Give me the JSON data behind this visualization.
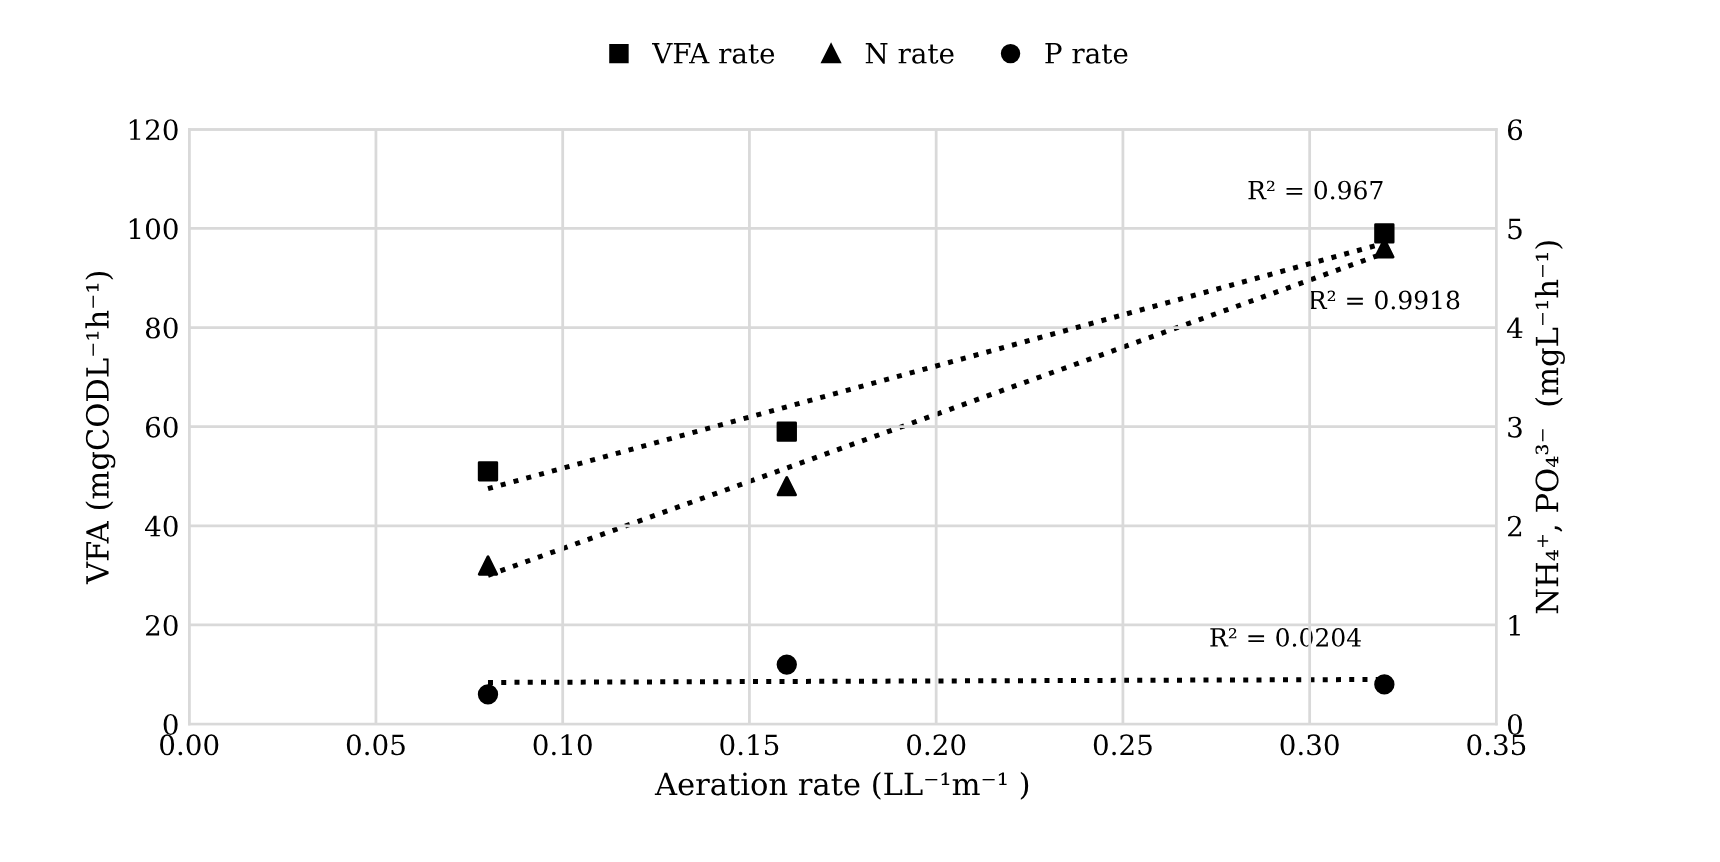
{
  "chart_data": {
    "type": "scatter",
    "xlabel": "Aeration rate (LL⁻¹m⁻¹ )",
    "ylabel": "VFA (mgCODL⁻¹h⁻¹)",
    "y2label": "NH₄⁺, PO₄³⁻  (mgL⁻¹h⁻¹)",
    "xlim": [
      0,
      0.35
    ],
    "xticks": [
      {
        "value": 0,
        "label": "0.00"
      },
      {
        "value": 0.05,
        "label": "0.05"
      },
      {
        "value": 0.1,
        "label": "0.10"
      },
      {
        "value": 0.15,
        "label": "0.15"
      },
      {
        "value": 0.2,
        "label": "0.20"
      },
      {
        "value": 0.25,
        "label": "0.25"
      },
      {
        "value": 0.3,
        "label": "0.30"
      },
      {
        "value": 0.35,
        "label": "0.35"
      }
    ],
    "ylim": [
      0,
      120
    ],
    "yticks": [
      0,
      20,
      40,
      60,
      80,
      100,
      120
    ],
    "y2lim": [
      0,
      6
    ],
    "y2ticks": [
      0,
      1,
      2,
      3,
      4,
      5,
      6
    ],
    "grid": true,
    "legend": "top",
    "series": [
      {
        "name": "VFA rate",
        "marker": "square",
        "color": "#000000",
        "x": [
          0.08,
          0.16,
          0.32
        ],
        "values": [
          51,
          59,
          99
        ]
      },
      {
        "name": "N rate",
        "marker": "triangle",
        "color": "#000000",
        "axis": "y2",
        "x": [
          0.08,
          0.16,
          0.32
        ],
        "values": [
          1.6,
          2.4,
          4.8
        ]
      },
      {
        "name": "P rate",
        "marker": "circle",
        "color": "#000000",
        "axis": "y2",
        "x": [
          0.08,
          0.16,
          0.32
        ],
        "values": [
          0.3,
          0.6,
          0.4
        ]
      },
      {
        "type": "line",
        "line_style": "dotted",
        "marker": "none",
        "color": "#000000",
        "x": [
          0.08,
          0.32
        ],
        "values": [
          47.5,
          97
        ]
      },
      {
        "type": "line",
        "line_style": "dotted",
        "marker": "none",
        "color": "#000000",
        "axis": "y2",
        "x": [
          0.08,
          0.32
        ],
        "values": [
          1.5,
          4.75
        ]
      },
      {
        "type": "line",
        "line_style": "dotted",
        "marker": "none",
        "color": "#000000",
        "axis": "y2",
        "x": [
          0.08,
          0.32
        ],
        "values": [
          0.42,
          0.45
        ]
      }
    ],
    "annotations": [
      "R² = 0.967",
      "R² = 0.9918",
      "R² = 0.0204"
    ]
  }
}
